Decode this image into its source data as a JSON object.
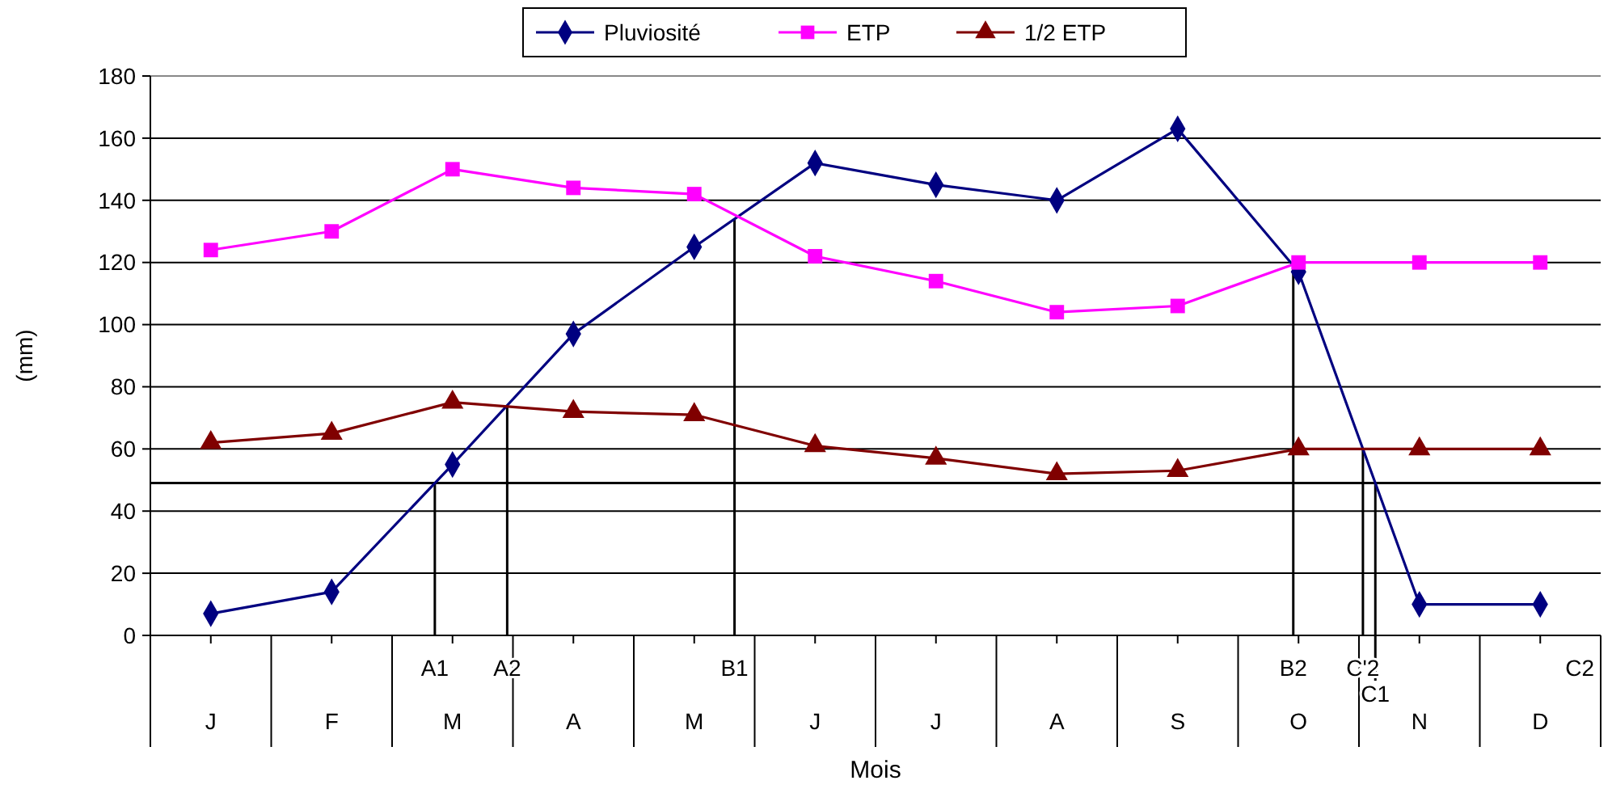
{
  "chart_data": {
    "type": "line",
    "xlabel": "Mois",
    "ylabel": "(mm)",
    "categories": [
      "J",
      "F",
      "M",
      "A",
      "M",
      "J",
      "J",
      "A",
      "S",
      "O",
      "N",
      "D"
    ],
    "ylim": [
      0,
      180
    ],
    "yticks": [
      0,
      20,
      40,
      60,
      80,
      100,
      120,
      140,
      160,
      180
    ],
    "grid": "y",
    "legend": "top",
    "series": [
      {
        "name": "Pluviosité",
        "color": "#000080",
        "marker": "diamond",
        "values": [
          7,
          14,
          55,
          97,
          125,
          152,
          145,
          140,
          163,
          117,
          10,
          10
        ]
      },
      {
        "name": "ETP",
        "color": "#ff00ff",
        "marker": "square",
        "values": [
          124,
          130,
          150,
          144,
          142,
          122,
          114,
          104,
          106,
          120,
          120,
          120
        ]
      },
      {
        "name": "1/2 ETP",
        "color": "#800000",
        "marker": "triangle",
        "values": [
          62,
          65,
          75,
          72,
          71,
          61,
          57,
          52,
          53,
          60,
          60,
          60
        ]
      }
    ],
    "ref_lines": [
      {
        "axis": "y",
        "value": 49,
        "color": "#000000"
      }
    ],
    "annotations": [
      {
        "text": "A1",
        "y": 49
      },
      {
        "text": "A2",
        "y": 74
      },
      {
        "text": "B1",
        "y": 134
      },
      {
        "text": "B2",
        "y": 119
      },
      {
        "text": "C'2",
        "y": 60
      },
      {
        "text": "C1",
        "y": 49
      },
      "C2"
    ]
  }
}
